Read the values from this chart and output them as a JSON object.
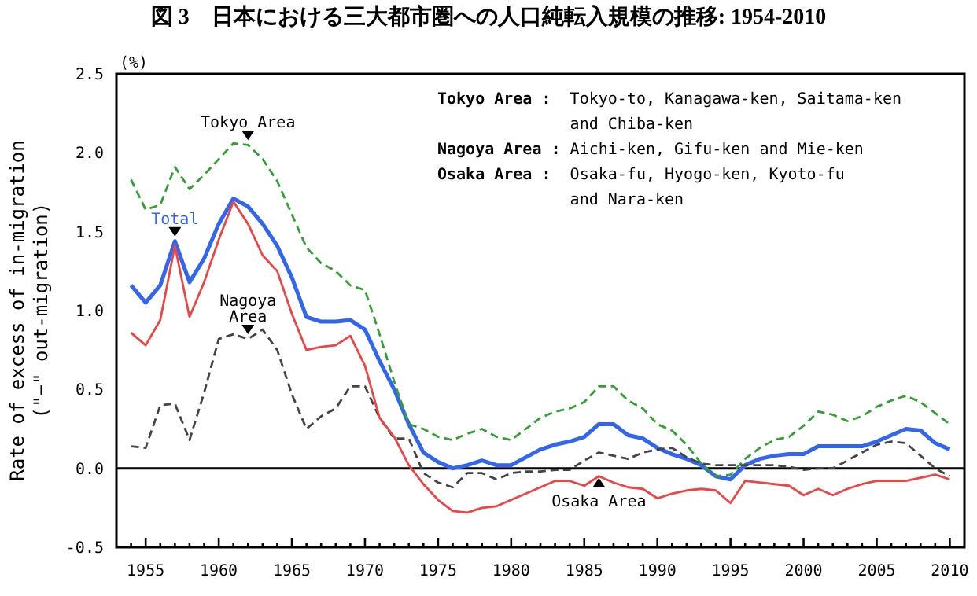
{
  "chart_data": {
    "type": "line",
    "title": "図 3　日本における三大都市圏への人口純転入規模の推移: 1954-2010",
    "ylabel": "Rate of excess of in-migration\n(\"−\" out-migration)",
    "annotations": [
      "(%)",
      "Tokyo Area : Tokyo-to, Kanagawa-ken, Saitama-ken\nand Chiba-ken",
      "Nagoya Area : Aichi-ken, Gifu-ken and Mie-ken",
      "Osaka Area : Osaka-fu, Hyogo-ken, Kyoto-fu\nand Nara-ken"
    ],
    "x": [
      1954,
      1955,
      1956,
      1957,
      1958,
      1959,
      1960,
      1961,
      1962,
      1963,
      1964,
      1965,
      1966,
      1967,
      1968,
      1969,
      1970,
      1971,
      1972,
      1973,
      1974,
      1975,
      1976,
      1977,
      1978,
      1979,
      1980,
      1981,
      1982,
      1983,
      1984,
      1985,
      1986,
      1987,
      1988,
      1989,
      1990,
      1991,
      1992,
      1993,
      1994,
      1995,
      1996,
      1997,
      1998,
      1999,
      2000,
      2001,
      2002,
      2003,
      2004,
      2005,
      2006,
      2007,
      2008,
      2009,
      2010
    ],
    "series": [
      {
        "name": "Total",
        "color": "#3366ee",
        "line_style": "solid",
        "values": [
          1.16,
          1.05,
          1.16,
          1.44,
          1.18,
          1.33,
          1.55,
          1.71,
          1.66,
          1.55,
          1.41,
          1.21,
          0.96,
          0.93,
          0.93,
          0.94,
          0.88,
          0.68,
          0.5,
          0.28,
          0.1,
          0.04,
          0.0,
          0.02,
          0.05,
          0.02,
          0.02,
          0.07,
          0.12,
          0.15,
          0.17,
          0.2,
          0.28,
          0.28,
          0.21,
          0.19,
          0.13,
          0.09,
          0.06,
          0.02,
          -0.05,
          -0.07,
          0.02,
          0.06,
          0.08,
          0.09,
          0.09,
          0.14,
          0.14,
          0.14,
          0.14,
          0.17,
          0.21,
          0.25,
          0.24,
          0.16,
          0.12
        ]
      },
      {
        "name": "Tokyo Area",
        "color": "#33a033",
        "line_style": "dashed",
        "values": [
          1.83,
          1.64,
          1.67,
          1.91,
          1.77,
          1.86,
          1.96,
          2.06,
          2.05,
          1.96,
          1.82,
          1.61,
          1.4,
          1.3,
          1.25,
          1.16,
          1.13,
          0.85,
          0.55,
          0.28,
          0.25,
          0.2,
          0.18,
          0.22,
          0.25,
          0.2,
          0.18,
          0.25,
          0.32,
          0.36,
          0.38,
          0.42,
          0.52,
          0.52,
          0.43,
          0.38,
          0.28,
          0.24,
          0.15,
          0.03,
          -0.05,
          -0.04,
          0.06,
          0.13,
          0.18,
          0.2,
          0.27,
          0.36,
          0.34,
          0.3,
          0.33,
          0.39,
          0.43,
          0.46,
          0.42,
          0.35,
          0.28
        ]
      },
      {
        "name": "Nagoya Area",
        "color": "#444444",
        "line_style": "dashed",
        "values": [
          0.14,
          0.13,
          0.4,
          0.41,
          0.18,
          0.48,
          0.82,
          0.85,
          0.82,
          0.88,
          0.75,
          0.47,
          0.25,
          0.33,
          0.38,
          0.52,
          0.52,
          0.32,
          0.19,
          0.19,
          -0.03,
          -0.09,
          -0.12,
          -0.03,
          -0.03,
          -0.07,
          -0.03,
          -0.02,
          -0.02,
          -0.01,
          -0.01,
          0.05,
          0.1,
          0.08,
          0.06,
          0.1,
          0.12,
          0.13,
          0.07,
          0.03,
          0.02,
          0.02,
          0.02,
          0.02,
          0.02,
          0.01,
          -0.01,
          0.0,
          0.0,
          0.05,
          0.1,
          0.15,
          0.17,
          0.16,
          0.08,
          0.0,
          -0.05
        ]
      },
      {
        "name": "Osaka Area",
        "color": "#ee4444",
        "line_style": "solid",
        "values": [
          0.86,
          0.78,
          0.94,
          1.41,
          0.96,
          1.18,
          1.45,
          1.69,
          1.55,
          1.35,
          1.25,
          0.98,
          0.75,
          0.77,
          0.78,
          0.84,
          0.65,
          0.32,
          0.2,
          0.02,
          -0.1,
          -0.2,
          -0.27,
          -0.28,
          -0.25,
          -0.24,
          -0.2,
          -0.16,
          -0.12,
          -0.08,
          -0.08,
          -0.11,
          -0.05,
          -0.09,
          -0.12,
          -0.13,
          -0.19,
          -0.16,
          -0.14,
          -0.13,
          -0.14,
          -0.22,
          -0.08,
          -0.09,
          -0.1,
          -0.11,
          -0.17,
          -0.13,
          -0.17,
          -0.13,
          -0.1,
          -0.08,
          -0.08,
          -0.08,
          -0.06,
          -0.04,
          -0.07
        ]
      }
    ],
    "xlim": [
      1953,
      2011
    ],
    "xticks": [
      {
        "value": 1954,
        "label": null
      },
      1955,
      {
        "value": 1956,
        "label": null
      },
      {
        "value": 1957,
        "label": null
      },
      {
        "value": 1958,
        "label": null
      },
      {
        "value": 1959,
        "label": null
      },
      1960,
      {
        "value": 1961,
        "label": null
      },
      {
        "value": 1962,
        "label": null
      },
      {
        "value": 1963,
        "label": null
      },
      {
        "value": 1964,
        "label": null
      },
      1965,
      {
        "value": 1966,
        "label": null
      },
      {
        "value": 1967,
        "label": null
      },
      {
        "value": 1968,
        "label": null
      },
      {
        "value": 1969,
        "label": null
      },
      1970,
      {
        "value": 1971,
        "label": null
      },
      {
        "value": 1972,
        "label": null
      },
      {
        "value": 1973,
        "label": null
      },
      {
        "value": 1974,
        "label": null
      },
      1975,
      {
        "value": 1976,
        "label": null
      },
      {
        "value": 1977,
        "label": null
      },
      {
        "value": 1978,
        "label": null
      },
      {
        "value": 1979,
        "label": null
      },
      1980,
      {
        "value": 1981,
        "label": null
      },
      {
        "value": 1982,
        "label": null
      },
      {
        "value": 1983,
        "label": null
      },
      {
        "value": 1984,
        "label": null
      },
      1985,
      {
        "value": 1986,
        "label": null
      },
      {
        "value": 1987,
        "label": null
      },
      {
        "value": 1988,
        "label": null
      },
      {
        "value": 1989,
        "label": null
      },
      1990,
      {
        "value": 1991,
        "label": null
      },
      {
        "value": 1992,
        "label": null
      },
      {
        "value": 1993,
        "label": null
      },
      {
        "value": 1994,
        "label": null
      },
      1995,
      {
        "value": 1996,
        "label": null
      },
      {
        "value": 1997,
        "label": null
      },
      {
        "value": 1998,
        "label": null
      },
      {
        "value": 1999,
        "label": null
      },
      2000,
      {
        "value": 2001,
        "label": null
      },
      {
        "value": 2002,
        "label": null
      },
      {
        "value": 2003,
        "label": null
      },
      {
        "value": 2004,
        "label": null
      },
      2005,
      {
        "value": 2006,
        "label": null
      },
      {
        "value": 2007,
        "label": null
      },
      {
        "value": 2008,
        "label": null
      },
      {
        "value": 2009,
        "label": null
      },
      2010
    ],
    "ylim": [
      -0.5,
      2.5
    ],
    "yticks": [
      {
        "value": -0.5,
        "label": "-0.5"
      },
      {
        "value": 0,
        "label": "0.0"
      },
      {
        "value": 0.5,
        "label": "0.5"
      },
      {
        "value": 1,
        "label": "1.0"
      },
      {
        "value": 1.5,
        "label": "1.5"
      },
      {
        "value": 2,
        "label": "2.0"
      },
      {
        "value": 2.5,
        "label": "2.5"
      }
    ],
    "ref_lines": [
      {
        "axis": "y",
        "value": 0,
        "color": "#000000",
        "line_style": "solid"
      }
    ],
    "grid": false,
    "marker": "none"
  }
}
